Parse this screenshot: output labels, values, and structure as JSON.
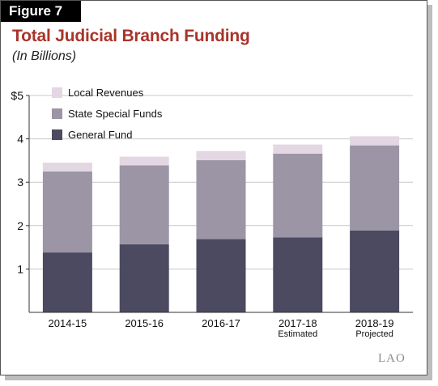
{
  "figure_label": "Figure 7",
  "logo_text": "LAO",
  "chart_data": {
    "type": "bar",
    "stacked": true,
    "title": "Total Judicial Branch Funding",
    "subtitle": "(In Billions)",
    "categories": [
      "2014-15",
      "2015-16",
      "2016-17",
      "2017-18",
      "2018-19"
    ],
    "category_sublabels": [
      "",
      "",
      "",
      "Estimated",
      "Projected"
    ],
    "series": [
      {
        "name": "General Fund",
        "values": [
          1.38,
          1.57,
          1.69,
          1.73,
          1.89
        ],
        "color": "#4b4a60"
      },
      {
        "name": "State Special Funds",
        "values": [
          1.87,
          1.82,
          1.82,
          1.93,
          1.96
        ],
        "color": "#9b95a5"
      },
      {
        "name": "Local Revenues",
        "values": [
          0.2,
          0.2,
          0.21,
          0.21,
          0.21
        ],
        "color": "#e2d7e3"
      }
    ],
    "legend_order": [
      "Local Revenues",
      "State Special Funds",
      "General Fund"
    ],
    "ylim": [
      0,
      5
    ],
    "yticks": [
      1,
      2,
      3,
      4,
      5
    ],
    "ytick_labels": [
      "1",
      "2",
      "3",
      "4",
      "$5"
    ],
    "grid": true,
    "legend_position": "top-left"
  }
}
